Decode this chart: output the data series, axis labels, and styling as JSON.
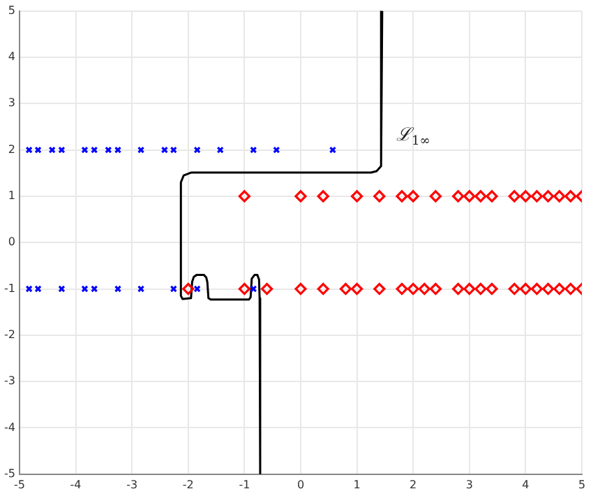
{
  "chart_data": {
    "type": "scatter",
    "xlim": [
      -5,
      5
    ],
    "ylim": [
      -5,
      5
    ],
    "xticks": [
      -5,
      -4,
      -3,
      -2,
      -1,
      0,
      1,
      2,
      3,
      4,
      5
    ],
    "yticks": [
      -5,
      -4,
      -3,
      -2,
      -1,
      0,
      1,
      2,
      3,
      4,
      5
    ],
    "grid": true,
    "legend": false,
    "series": [
      {
        "color": "#0000ff",
        "marker": "cross",
        "x": [
          -4.83,
          -4.67,
          -4.42,
          -4.25,
          -3.84,
          -3.67,
          -3.42,
          -3.25,
          -2.84,
          -2.42,
          -2.26,
          -1.84,
          -1.43,
          -0.84,
          -0.43,
          0.57,
          -4.83,
          -4.67,
          -4.25,
          -3.84,
          -3.67,
          -3.25,
          -2.84,
          -2.26,
          -1.84,
          -0.84
        ],
        "values": [
          2,
          2,
          2,
          2,
          2,
          2,
          2,
          2,
          2,
          2,
          2,
          2,
          2,
          2,
          2,
          2,
          -1,
          -1,
          -1,
          -1,
          -1,
          -1,
          -1,
          -1,
          -1,
          -1
        ]
      },
      {
        "color": "#ff0000",
        "marker": "diamond",
        "x": [
          -1,
          0,
          0.4,
          1,
          1.4,
          1.8,
          2,
          2.4,
          2.8,
          3,
          3.2,
          3.4,
          3.8,
          4,
          4.2,
          4.4,
          4.6,
          4.8,
          5,
          -2,
          -1,
          -0.6,
          0,
          0.4,
          0.8,
          1,
          1.4,
          1.8,
          2,
          2.2,
          2.4,
          2.8,
          3,
          3.2,
          3.4,
          3.8,
          4,
          4.2,
          4.4,
          4.6,
          4.8,
          5
        ],
        "values": [
          1,
          1,
          1,
          1,
          1,
          1,
          1,
          1,
          1,
          1,
          1,
          1,
          1,
          1,
          1,
          1,
          1,
          1,
          1,
          -1,
          -1,
          -1,
          -1,
          -1,
          -1,
          -1,
          -1,
          -1,
          -1,
          -1,
          -1,
          -1,
          -1,
          -1,
          -1,
          -1,
          -1,
          -1,
          -1,
          -1,
          -1,
          -1
        ]
      },
      {
        "type": "line",
        "color": "#000000",
        "marker": "none",
        "x": [
          1.45,
          1.43,
          1.35,
          1.25,
          -1.95,
          -2.08,
          -2.13,
          -2.13,
          -2.1,
          -1.95,
          -1.93,
          -1.9,
          -1.85,
          -1.72,
          -1.68,
          -1.66,
          -1.64,
          -1.6,
          -0.92,
          -0.89,
          -0.87,
          -0.82,
          -0.77,
          -0.74,
          -0.73,
          -0.72
        ],
        "values": [
          5,
          1.65,
          1.54,
          1.51,
          1.51,
          1.45,
          1.3,
          -1.15,
          -1.22,
          -1.2,
          -0.85,
          -0.74,
          -0.7,
          -0.7,
          -0.75,
          -0.85,
          -1.2,
          -1.23,
          -1.23,
          -1.18,
          -0.78,
          -0.7,
          -0.7,
          -0.8,
          -1.2,
          -5
        ]
      }
    ],
    "annotations": [
      "ℒ$_{1∞}$"
    ]
  }
}
